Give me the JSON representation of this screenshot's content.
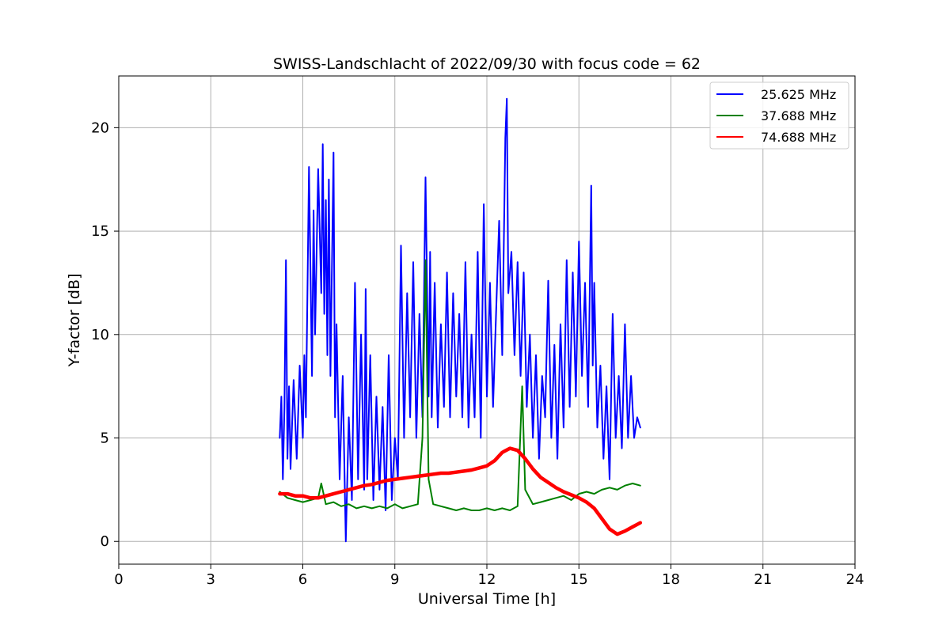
{
  "chart_data": {
    "type": "line",
    "title": "SWISS-Landschlacht of 2022/09/30 with focus code = 62",
    "xlabel": "Universal Time [h]",
    "ylabel": "Y-factor [dB]",
    "xlim": [
      0,
      24
    ],
    "ylim": [
      -1.1,
      22.5
    ],
    "xticks": [
      0,
      3,
      6,
      9,
      12,
      15,
      18,
      21,
      24
    ],
    "yticks": [
      0,
      5,
      10,
      15,
      20
    ],
    "grid": true,
    "legend_position": "top-right",
    "series": [
      {
        "name": "25.625 MHz",
        "color": "#0000ff",
        "x": [
          5.25,
          5.3,
          5.35,
          5.4,
          5.45,
          5.5,
          5.55,
          5.6,
          5.7,
          5.8,
          5.9,
          6.0,
          6.05,
          6.1,
          6.2,
          6.3,
          6.35,
          6.4,
          6.5,
          6.6,
          6.65,
          6.7,
          6.75,
          6.8,
          6.85,
          6.9,
          7.0,
          7.05,
          7.1,
          7.2,
          7.3,
          7.4,
          7.5,
          7.6,
          7.7,
          7.8,
          7.9,
          8.0,
          8.05,
          8.1,
          8.2,
          8.3,
          8.4,
          8.5,
          8.6,
          8.7,
          8.8,
          8.9,
          9.0,
          9.1,
          9.2,
          9.3,
          9.4,
          9.5,
          9.6,
          9.7,
          9.8,
          9.9,
          10.0,
          10.1,
          10.15,
          10.2,
          10.3,
          10.4,
          10.5,
          10.6,
          10.7,
          10.8,
          10.9,
          11.0,
          11.1,
          11.2,
          11.3,
          11.4,
          11.5,
          11.6,
          11.7,
          11.8,
          11.9,
          12.0,
          12.1,
          12.2,
          12.3,
          12.4,
          12.5,
          12.6,
          12.65,
          12.7,
          12.8,
          12.9,
          13.0,
          13.1,
          13.2,
          13.3,
          13.4,
          13.5,
          13.6,
          13.7,
          13.8,
          13.9,
          14.0,
          14.1,
          14.2,
          14.3,
          14.4,
          14.5,
          14.6,
          14.7,
          14.8,
          14.9,
          15.0,
          15.1,
          15.2,
          15.3,
          15.4,
          15.45,
          15.5,
          15.6,
          15.7,
          15.8,
          15.9,
          16.0,
          16.1,
          16.2,
          16.3,
          16.4,
          16.5,
          16.6,
          16.7,
          16.8,
          16.9,
          17.0
        ],
        "y": [
          5.0,
          7.0,
          3.0,
          6.5,
          13.6,
          4.0,
          7.5,
          3.5,
          7.8,
          4.0,
          8.5,
          5.0,
          9.0,
          6.0,
          18.1,
          8.0,
          16.0,
          10.0,
          18.0,
          12.0,
          19.2,
          11.0,
          16.5,
          9.0,
          17.5,
          8.0,
          18.8,
          6.0,
          10.5,
          3.0,
          8.0,
          0.0,
          6.0,
          2.0,
          12.5,
          3.0,
          10.0,
          2.5,
          12.2,
          3.0,
          9.0,
          2.0,
          7.0,
          2.5,
          6.5,
          1.5,
          9.0,
          2.0,
          5.0,
          3.0,
          14.3,
          5.0,
          12.0,
          6.0,
          13.5,
          5.0,
          11.0,
          6.0,
          17.6,
          7.0,
          14.0,
          6.0,
          12.5,
          5.5,
          10.5,
          6.5,
          13.0,
          6.0,
          12.0,
          7.0,
          11.0,
          6.0,
          13.5,
          5.5,
          10.0,
          6.0,
          14.0,
          5.0,
          16.3,
          7.0,
          12.5,
          6.5,
          11.0,
          15.5,
          9.0,
          19.5,
          21.4,
          12.0,
          14.0,
          9.0,
          13.5,
          8.0,
          13.0,
          6.5,
          10.0,
          5.0,
          9.0,
          4.0,
          8.0,
          6.0,
          12.6,
          5.0,
          9.5,
          4.0,
          10.5,
          5.5,
          13.6,
          6.5,
          13.0,
          7.0,
          14.5,
          8.0,
          12.5,
          6.5,
          17.2,
          8.5,
          12.5,
          5.5,
          8.5,
          4.0,
          7.5,
          3.0,
          11.0,
          5.0,
          8.0,
          4.5,
          10.5,
          5.0,
          8.0,
          5.0,
          6.0,
          5.5
        ]
      },
      {
        "name": "37.688 MHz",
        "color": "#008000",
        "x": [
          5.25,
          5.5,
          5.75,
          6.0,
          6.25,
          6.5,
          6.6,
          6.75,
          7.0,
          7.25,
          7.5,
          7.75,
          8.0,
          8.25,
          8.5,
          8.75,
          9.0,
          9.25,
          9.5,
          9.75,
          9.9,
          10.0,
          10.1,
          10.25,
          10.5,
          10.75,
          11.0,
          11.25,
          11.5,
          11.75,
          12.0,
          12.25,
          12.5,
          12.75,
          13.0,
          13.15,
          13.25,
          13.5,
          13.75,
          14.0,
          14.25,
          14.5,
          14.75,
          15.0,
          15.25,
          15.5,
          15.75,
          16.0,
          16.25,
          16.5,
          16.75,
          17.0
        ],
        "y": [
          2.4,
          2.1,
          2.0,
          1.9,
          2.0,
          2.1,
          2.8,
          1.8,
          1.9,
          1.7,
          1.8,
          1.6,
          1.7,
          1.6,
          1.7,
          1.6,
          1.8,
          1.6,
          1.7,
          1.8,
          5.0,
          13.6,
          3.0,
          1.8,
          1.7,
          1.6,
          1.5,
          1.6,
          1.5,
          1.5,
          1.6,
          1.5,
          1.6,
          1.5,
          1.7,
          7.5,
          2.5,
          1.8,
          1.9,
          2.0,
          2.1,
          2.2,
          2.0,
          2.3,
          2.4,
          2.3,
          2.5,
          2.6,
          2.5,
          2.7,
          2.8,
          2.7
        ]
      },
      {
        "name": "74.688 MHz",
        "color": "#ff0000",
        "x": [
          5.25,
          5.5,
          5.75,
          6.0,
          6.25,
          6.5,
          6.75,
          7.0,
          7.25,
          7.5,
          7.75,
          8.0,
          8.25,
          8.5,
          8.75,
          9.0,
          9.25,
          9.5,
          9.75,
          10.0,
          10.25,
          10.5,
          10.75,
          11.0,
          11.25,
          11.5,
          11.75,
          12.0,
          12.25,
          12.5,
          12.75,
          13.0,
          13.25,
          13.5,
          13.75,
          14.0,
          14.25,
          14.5,
          14.75,
          15.0,
          15.25,
          15.5,
          15.75,
          16.0,
          16.25,
          16.5,
          16.75,
          17.0
        ],
        "y": [
          2.3,
          2.3,
          2.2,
          2.2,
          2.1,
          2.1,
          2.2,
          2.3,
          2.4,
          2.5,
          2.6,
          2.7,
          2.75,
          2.85,
          2.95,
          3.0,
          3.05,
          3.1,
          3.15,
          3.2,
          3.25,
          3.3,
          3.3,
          3.35,
          3.4,
          3.45,
          3.55,
          3.65,
          3.9,
          4.3,
          4.5,
          4.4,
          4.0,
          3.5,
          3.1,
          2.85,
          2.6,
          2.4,
          2.25,
          2.1,
          1.9,
          1.6,
          1.1,
          0.6,
          0.35,
          0.5,
          0.7,
          0.9
        ]
      }
    ]
  }
}
